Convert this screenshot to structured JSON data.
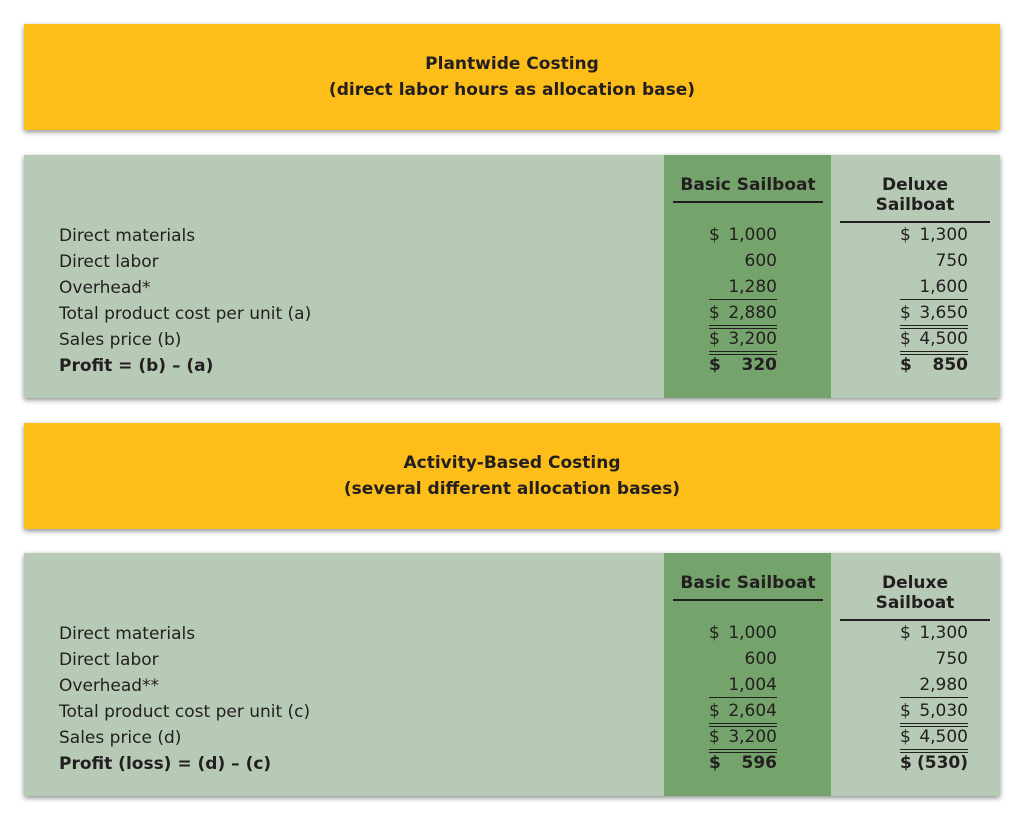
{
  "sections": [
    {
      "title": "Plantwide Costing",
      "subtitle": "(direct labor hours as allocation base)",
      "columns": [
        "Basic Sailboat",
        "Deluxe Sailboat"
      ],
      "rows": [
        {
          "label": "Direct materials",
          "basic": "$ 1,000",
          "deluxe": "$ 1,300"
        },
        {
          "label": "Direct labor",
          "basic": "600",
          "deluxe": "750"
        },
        {
          "label": "Overhead*",
          "basic": "1,280",
          "deluxe": "1,600"
        },
        {
          "label": "Total product cost per unit (a)",
          "basic": "$ 2,880",
          "deluxe": "$ 3,650"
        },
        {
          "label": "Sales price (b)",
          "basic": "$ 3,200",
          "deluxe": "$ 4,500"
        },
        {
          "label": "Profit = (b) – (a)",
          "basic": "$ 320",
          "deluxe": "$ 850"
        }
      ]
    },
    {
      "title": "Activity-Based Costing",
      "subtitle": "(several different allocation bases)",
      "columns": [
        "Basic Sailboat",
        "Deluxe Sailboat"
      ],
      "rows": [
        {
          "label": "Direct materials",
          "basic": "$ 1,000",
          "deluxe": "$ 1,300"
        },
        {
          "label": "Direct labor",
          "basic": "600",
          "deluxe": "750"
        },
        {
          "label": "Overhead**",
          "basic": "1,004",
          "deluxe": "2,980"
        },
        {
          "label": "Total product cost per unit (c)",
          "basic": "$ 2,604",
          "deluxe": "$ 5,030"
        },
        {
          "label": "Sales price (d)",
          "basic": "$ 3,200",
          "deluxe": "$ 4,500"
        },
        {
          "label": "Profit (loss) = (d) – (c)",
          "basic": "$ 596",
          "deluxe": "$ (530)"
        }
      ]
    }
  ],
  "colors": {
    "banner": "#fdbe1a",
    "panel": "#b6cab5",
    "highlight_column": "#75a36c"
  }
}
